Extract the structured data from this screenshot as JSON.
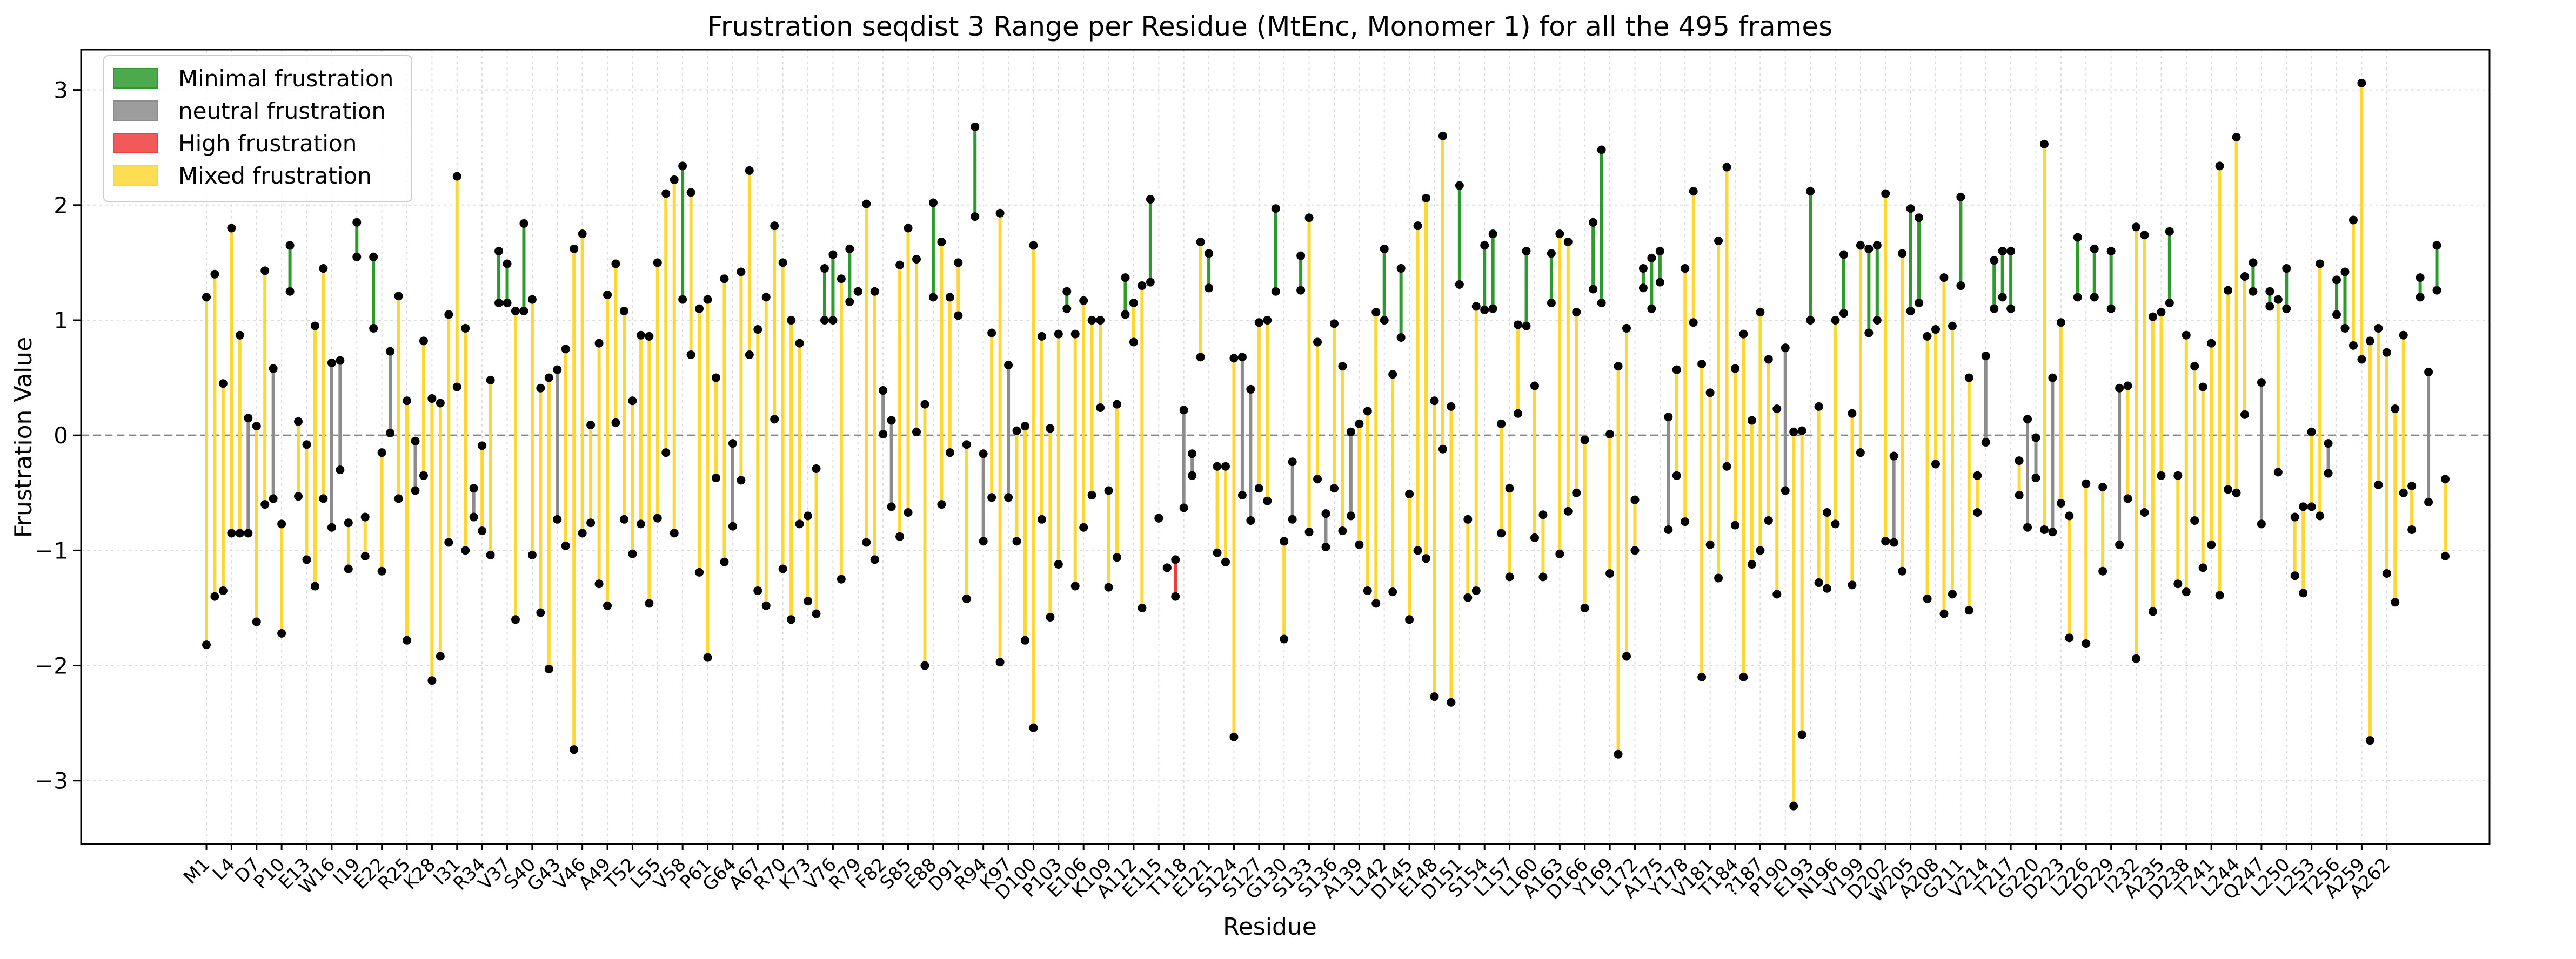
{
  "chart_data": {
    "type": "range",
    "title": "Frustration seqdist 3 Range per Residue (MtEnc, Monomer 1) for all the 495 frames",
    "xlabel": "Residue",
    "ylabel": "Frustration Value",
    "ylim": [
      -3.55,
      3.35
    ],
    "yticks": [
      -3,
      -2,
      -1,
      0,
      1,
      2,
      3
    ],
    "grid": true,
    "zero_line": true,
    "legend_position": "top-left",
    "legend": [
      {
        "key": "minimal",
        "label": "Minimal frustration",
        "color": "#2e9a2e"
      },
      {
        "key": "neutral",
        "label": "neutral frustration",
        "color": "#8c8c8c"
      },
      {
        "key": "high",
        "label": "High frustration",
        "color": "#f03c3c"
      },
      {
        "key": "mixed",
        "label": "Mixed frustration",
        "color": "#fdd835"
      }
    ],
    "x_tick_labels": [
      "M1",
      "L4",
      "D7",
      "P10",
      "E13",
      "W16",
      "I19",
      "E22",
      "R25",
      "K28",
      "I31",
      "R34",
      "V37",
      "S40",
      "G43",
      "V46",
      "A49",
      "T52",
      "L55",
      "V58",
      "P61",
      "G64",
      "A67",
      "R70",
      "K73",
      "V76",
      "R79",
      "F82",
      "S85",
      "E88",
      "D91",
      "R94",
      "K97",
      "D100",
      "P103",
      "E106",
      "K109",
      "A112",
      "E115",
      "T118",
      "E121",
      "S124",
      "S127",
      "G130",
      "S133",
      "S136",
      "A139",
      "L142",
      "D145",
      "E148",
      "D151",
      "S154",
      "L157",
      "L160",
      "A163",
      "D166",
      "Y169",
      "L172",
      "A175",
      "Y178",
      "V181",
      "T184",
      "?187",
      "P190",
      "E193",
      "N196",
      "V199",
      "D202",
      "W205",
      "A208",
      "G211",
      "V214",
      "T217",
      "G220",
      "D223",
      "L226",
      "D229",
      "I232",
      "A235",
      "D238",
      "T241",
      "L244",
      "Q247",
      "L250",
      "L253",
      "T256",
      "A259",
      "A262"
    ],
    "tick_every": 3,
    "ranges": [
      [
        "mixed",
        -1.82,
        1.2
      ],
      [
        "mixed",
        -1.4,
        1.4
      ],
      [
        "mixed",
        -1.35,
        0.45
      ],
      [
        "mixed",
        -0.85,
        1.8
      ],
      [
        "mixed",
        -0.85,
        0.87
      ],
      [
        "neutral",
        -0.85,
        0.15
      ],
      [
        "mixed",
        -1.62,
        0.08
      ],
      [
        "mixed",
        -0.6,
        1.43
      ],
      [
        "neutral",
        -0.55,
        0.58
      ],
      [
        "mixed",
        -1.72,
        -0.77
      ],
      [
        "minimal",
        1.25,
        1.65
      ],
      [
        "mixed",
        -0.53,
        0.12
      ],
      [
        "mixed",
        -1.08,
        -0.08
      ],
      [
        "mixed",
        -1.31,
        0.95
      ],
      [
        "mixed",
        -0.55,
        1.45
      ],
      [
        "neutral",
        -0.8,
        0.63
      ],
      [
        "neutral",
        -0.3,
        0.65
      ],
      [
        "mixed",
        -1.16,
        -0.76
      ],
      [
        "minimal",
        1.55,
        1.85
      ],
      [
        "mixed",
        -1.05,
        -0.71
      ],
      [
        "minimal",
        0.93,
        1.55
      ],
      [
        "mixed",
        -1.18,
        -0.15
      ],
      [
        "neutral",
        0.02,
        0.73
      ],
      [
        "mixed",
        -0.55,
        1.21
      ],
      [
        "mixed",
        -1.78,
        0.3
      ],
      [
        "neutral",
        -0.48,
        -0.05
      ],
      [
        "mixed",
        -0.35,
        0.82
      ],
      [
        "mixed",
        -2.13,
        0.32
      ],
      [
        "mixed",
        -1.92,
        0.28
      ],
      [
        "mixed",
        -0.93,
        1.05
      ],
      [
        "mixed",
        0.42,
        2.25
      ],
      [
        "mixed",
        -1.0,
        0.93
      ],
      [
        "neutral",
        -0.71,
        -0.46
      ],
      [
        "mixed",
        -0.83,
        -0.09
      ],
      [
        "mixed",
        -1.04,
        0.48
      ],
      [
        "minimal",
        1.15,
        1.6
      ],
      [
        "minimal",
        1.15,
        1.49
      ],
      [
        "mixed",
        -1.6,
        1.08
      ],
      [
        "minimal",
        1.08,
        1.84
      ],
      [
        "mixed",
        -1.04,
        1.18
      ],
      [
        "mixed",
        -1.54,
        0.41
      ],
      [
        "mixed",
        -2.03,
        0.5
      ],
      [
        "neutral",
        -0.73,
        0.57
      ],
      [
        "mixed",
        -0.96,
        0.75
      ],
      [
        "mixed",
        -2.73,
        1.62
      ],
      [
        "mixed",
        -0.85,
        1.75
      ],
      [
        "mixed",
        -0.76,
        0.09
      ],
      [
        "mixed",
        -1.29,
        0.8
      ],
      [
        "mixed",
        -1.48,
        1.22
      ],
      [
        "mixed",
        0.11,
        1.49
      ],
      [
        "mixed",
        -0.73,
        1.08
      ],
      [
        "mixed",
        -1.03,
        0.3
      ],
      [
        "mixed",
        -0.77,
        0.87
      ],
      [
        "mixed",
        -1.46,
        0.86
      ],
      [
        "mixed",
        -0.72,
        1.5
      ],
      [
        "mixed",
        -0.15,
        2.1
      ],
      [
        "mixed",
        -0.85,
        2.22
      ],
      [
        "minimal",
        1.18,
        2.34
      ],
      [
        "mixed",
        0.7,
        2.11
      ],
      [
        "mixed",
        -1.19,
        1.1
      ],
      [
        "mixed",
        -1.93,
        1.18
      ],
      [
        "mixed",
        -0.37,
        0.5
      ],
      [
        "mixed",
        -1.1,
        1.36
      ],
      [
        "neutral",
        -0.79,
        -0.07
      ],
      [
        "mixed",
        -0.39,
        1.42
      ],
      [
        "mixed",
        0.7,
        2.3
      ],
      [
        "mixed",
        -1.35,
        0.92
      ],
      [
        "mixed",
        -1.48,
        1.2
      ],
      [
        "mixed",
        0.14,
        1.82
      ],
      [
        "mixed",
        -1.16,
        1.5
      ],
      [
        "mixed",
        -1.6,
        1.0
      ],
      [
        "mixed",
        -0.77,
        0.8
      ],
      [
        "mixed",
        -1.44,
        -0.7
      ],
      [
        "mixed",
        -1.55,
        -0.29
      ],
      [
        "minimal",
        1.0,
        1.45
      ],
      [
        "minimal",
        1.0,
        1.57
      ],
      [
        "mixed",
        -1.25,
        1.36
      ],
      [
        "minimal",
        1.16,
        1.62
      ],
      [
        "minimal",
        1.25,
        1.25
      ],
      [
        "mixed",
        -0.93,
        2.01
      ],
      [
        "mixed",
        -1.08,
        1.25
      ],
      [
        "neutral",
        0.01,
        0.39
      ],
      [
        "neutral",
        -0.62,
        0.13
      ],
      [
        "mixed",
        -0.88,
        1.48
      ],
      [
        "mixed",
        -0.67,
        1.8
      ],
      [
        "mixed",
        0.03,
        1.53
      ],
      [
        "mixed",
        -2.0,
        0.27
      ],
      [
        "minimal",
        1.2,
        2.02
      ],
      [
        "mixed",
        -0.6,
        1.68
      ],
      [
        "mixed",
        -0.15,
        1.2
      ],
      [
        "mixed",
        1.04,
        1.5
      ],
      [
        "mixed",
        -1.42,
        -0.08
      ],
      [
        "minimal",
        1.9,
        2.68
      ],
      [
        "neutral",
        -0.92,
        -0.16
      ],
      [
        "mixed",
        -0.54,
        0.89
      ],
      [
        "mixed",
        -1.97,
        1.93
      ],
      [
        "neutral",
        -0.54,
        0.61
      ],
      [
        "mixed",
        -0.92,
        0.04
      ],
      [
        "mixed",
        -1.78,
        0.08
      ],
      [
        "mixed",
        -2.54,
        1.65
      ],
      [
        "mixed",
        -0.73,
        0.86
      ],
      [
        "mixed",
        -1.58,
        0.06
      ],
      [
        "mixed",
        -1.12,
        0.88
      ],
      [
        "minimal",
        1.1,
        1.25
      ],
      [
        "mixed",
        -1.31,
        0.88
      ],
      [
        "mixed",
        -0.8,
        1.17
      ],
      [
        "mixed",
        -0.52,
        1.0
      ],
      [
        "mixed",
        0.24,
        1.0
      ],
      [
        "mixed",
        -1.32,
        -0.48
      ],
      [
        "mixed",
        -1.06,
        0.27
      ],
      [
        "minimal",
        1.05,
        1.37
      ],
      [
        "mixed",
        0.81,
        1.15
      ],
      [
        "mixed",
        -1.5,
        1.3
      ],
      [
        "minimal",
        1.33,
        2.05
      ],
      [
        "mixed",
        -0.72,
        -0.72
      ],
      [
        "high",
        -1.15,
        -1.15
      ],
      [
        "high",
        -1.4,
        -1.08
      ],
      [
        "neutral",
        -0.63,
        0.22
      ],
      [
        "neutral",
        -0.35,
        -0.16
      ],
      [
        "mixed",
        0.68,
        1.68
      ],
      [
        "minimal",
        1.28,
        1.58
      ],
      [
        "mixed",
        -1.02,
        -0.27
      ],
      [
        "mixed",
        -1.1,
        -0.27
      ],
      [
        "mixed",
        -2.62,
        0.67
      ],
      [
        "neutral",
        -0.52,
        0.68
      ],
      [
        "neutral",
        -0.74,
        0.4
      ],
      [
        "mixed",
        -0.46,
        0.98
      ],
      [
        "mixed",
        -0.57,
        1.0
      ],
      [
        "minimal",
        1.25,
        1.97
      ],
      [
        "mixed",
        -1.77,
        -0.92
      ],
      [
        "neutral",
        -0.73,
        -0.23
      ],
      [
        "minimal",
        1.26,
        1.56
      ],
      [
        "mixed",
        -0.84,
        1.89
      ],
      [
        "mixed",
        -0.38,
        0.81
      ],
      [
        "neutral",
        -0.97,
        -0.68
      ],
      [
        "mixed",
        -0.46,
        0.97
      ],
      [
        "mixed",
        -0.83,
        0.6
      ],
      [
        "neutral",
        -0.7,
        0.03
      ],
      [
        "mixed",
        -0.95,
        0.1
      ],
      [
        "mixed",
        -1.35,
        0.21
      ],
      [
        "mixed",
        -1.46,
        1.07
      ],
      [
        "minimal",
        1.0,
        1.62
      ],
      [
        "mixed",
        -1.36,
        0.53
      ],
      [
        "minimal",
        0.85,
        1.45
      ],
      [
        "mixed",
        -1.6,
        -0.51
      ],
      [
        "mixed",
        -1.0,
        1.82
      ],
      [
        "mixed",
        -1.07,
        2.06
      ],
      [
        "mixed",
        -2.27,
        0.3
      ],
      [
        "mixed",
        -0.12,
        2.6
      ],
      [
        "mixed",
        -2.32,
        0.25
      ],
      [
        "minimal",
        1.31,
        2.17
      ],
      [
        "mixed",
        -1.41,
        -0.73
      ],
      [
        "mixed",
        -1.35,
        1.12
      ],
      [
        "minimal",
        1.09,
        1.65
      ],
      [
        "minimal",
        1.1,
        1.75
      ],
      [
        "mixed",
        -0.85,
        0.1
      ],
      [
        "mixed",
        -1.23,
        -0.46
      ],
      [
        "mixed",
        0.19,
        0.96
      ],
      [
        "minimal",
        0.95,
        1.6
      ],
      [
        "mixed",
        -0.89,
        0.43
      ],
      [
        "mixed",
        -1.23,
        -0.69
      ],
      [
        "minimal",
        1.15,
        1.58
      ],
      [
        "mixed",
        -1.03,
        1.75
      ],
      [
        "mixed",
        -0.66,
        1.68
      ],
      [
        "mixed",
        -0.5,
        1.07
      ],
      [
        "mixed",
        -1.5,
        -0.04
      ],
      [
        "minimal",
        1.27,
        1.85
      ],
      [
        "minimal",
        1.15,
        2.48
      ],
      [
        "mixed",
        -1.2,
        0.01
      ],
      [
        "mixed",
        -2.77,
        0.6
      ],
      [
        "mixed",
        -1.92,
        0.93
      ],
      [
        "mixed",
        -1.0,
        -0.56
      ],
      [
        "minimal",
        1.28,
        1.45
      ],
      [
        "minimal",
        1.1,
        1.54
      ],
      [
        "minimal",
        1.33,
        1.6
      ],
      [
        "neutral",
        -0.82,
        0.16
      ],
      [
        "mixed",
        -0.35,
        0.57
      ],
      [
        "mixed",
        -0.75,
        1.45
      ],
      [
        "mixed",
        0.98,
        2.12
      ],
      [
        "mixed",
        -2.1,
        0.62
      ],
      [
        "mixed",
        -0.95,
        0.37
      ],
      [
        "mixed",
        -1.24,
        1.69
      ],
      [
        "mixed",
        -0.27,
        2.33
      ],
      [
        "mixed",
        -0.78,
        0.58
      ],
      [
        "mixed",
        -2.1,
        0.88
      ],
      [
        "mixed",
        -1.12,
        0.13
      ],
      [
        "mixed",
        -1.0,
        1.07
      ],
      [
        "mixed",
        -0.74,
        0.66
      ],
      [
        "mixed",
        -1.38,
        0.23
      ],
      [
        "neutral",
        -0.48,
        0.76
      ],
      [
        "mixed",
        -3.22,
        0.03
      ],
      [
        "mixed",
        -2.6,
        0.04
      ],
      [
        "minimal",
        1.0,
        2.12
      ],
      [
        "mixed",
        -1.28,
        0.25
      ],
      [
        "mixed",
        -1.33,
        -0.67
      ],
      [
        "mixed",
        -0.77,
        1.0
      ],
      [
        "minimal",
        1.06,
        1.57
      ],
      [
        "mixed",
        -1.3,
        0.19
      ],
      [
        "mixed",
        -0.15,
        1.65
      ],
      [
        "minimal",
        0.89,
        1.62
      ],
      [
        "minimal",
        1.0,
        1.65
      ],
      [
        "mixed",
        -0.92,
        2.1
      ],
      [
        "neutral",
        -0.93,
        -0.18
      ],
      [
        "mixed",
        -1.18,
        1.58
      ],
      [
        "minimal",
        1.08,
        1.97
      ],
      [
        "minimal",
        1.15,
        1.89
      ],
      [
        "mixed",
        -1.42,
        0.86
      ],
      [
        "mixed",
        -0.25,
        0.92
      ],
      [
        "mixed",
        -1.55,
        1.37
      ],
      [
        "mixed",
        -1.38,
        0.95
      ],
      [
        "minimal",
        1.3,
        2.07
      ],
      [
        "mixed",
        -1.52,
        0.5
      ],
      [
        "mixed",
        -0.67,
        -0.35
      ],
      [
        "neutral",
        -0.06,
        0.69
      ],
      [
        "minimal",
        1.1,
        1.52
      ],
      [
        "minimal",
        1.2,
        1.6
      ],
      [
        "minimal",
        1.1,
        1.6
      ],
      [
        "mixed",
        -0.52,
        -0.22
      ],
      [
        "neutral",
        -0.8,
        0.14
      ],
      [
        "neutral",
        -0.37,
        -0.02
      ],
      [
        "mixed",
        -0.82,
        2.53
      ],
      [
        "neutral",
        -0.84,
        0.5
      ],
      [
        "mixed",
        -0.59,
        0.98
      ],
      [
        "mixed",
        -1.76,
        -0.7
      ],
      [
        "minimal",
        1.2,
        1.72
      ],
      [
        "mixed",
        -1.81,
        -0.42
      ],
      [
        "minimal",
        1.2,
        1.62
      ],
      [
        "mixed",
        -1.18,
        -0.45
      ],
      [
        "minimal",
        1.1,
        1.6
      ],
      [
        "neutral",
        -0.95,
        0.41
      ],
      [
        "mixed",
        -0.55,
        0.43
      ],
      [
        "mixed",
        -1.94,
        1.81
      ],
      [
        "mixed",
        -0.67,
        1.74
      ],
      [
        "mixed",
        -1.53,
        1.03
      ],
      [
        "mixed",
        -0.35,
        1.07
      ],
      [
        "minimal",
        1.15,
        1.77
      ],
      [
        "mixed",
        -1.29,
        -0.35
      ],
      [
        "mixed",
        -1.36,
        0.87
      ],
      [
        "mixed",
        -0.74,
        0.6
      ],
      [
        "mixed",
        -1.15,
        0.42
      ],
      [
        "mixed",
        -0.95,
        0.8
      ],
      [
        "mixed",
        -1.39,
        2.34
      ],
      [
        "mixed",
        -0.47,
        1.26
      ],
      [
        "mixed",
        -0.5,
        2.59
      ],
      [
        "mixed",
        0.18,
        1.38
      ],
      [
        "minimal",
        1.25,
        1.5
      ],
      [
        "neutral",
        -0.77,
        0.46
      ],
      [
        "minimal",
        1.12,
        1.25
      ],
      [
        "mixed",
        -0.32,
        1.18
      ],
      [
        "minimal",
        1.1,
        1.45
      ],
      [
        "mixed",
        -1.22,
        -0.71
      ],
      [
        "mixed",
        -1.37,
        -0.62
      ],
      [
        "mixed",
        -0.62,
        0.03
      ],
      [
        "mixed",
        -0.7,
        1.49
      ],
      [
        "neutral",
        -0.33,
        -0.07
      ],
      [
        "minimal",
        1.05,
        1.35
      ],
      [
        "minimal",
        0.93,
        1.42
      ],
      [
        "mixed",
        0.78,
        1.87
      ],
      [
        "mixed",
        0.66,
        3.06
      ],
      [
        "mixed",
        -2.65,
        0.82
      ],
      [
        "mixed",
        -0.43,
        0.93
      ],
      [
        "mixed",
        -1.2,
        0.72
      ],
      [
        "mixed",
        -1.45,
        0.23
      ],
      [
        "mixed",
        -0.5,
        0.87
      ],
      [
        "mixed",
        -0.82,
        -0.44
      ],
      [
        "minimal",
        1.2,
        1.37
      ],
      [
        "neutral",
        -0.58,
        0.55
      ],
      [
        "minimal",
        1.26,
        1.65
      ],
      [
        "mixed",
        -1.05,
        -0.38
      ]
    ]
  }
}
